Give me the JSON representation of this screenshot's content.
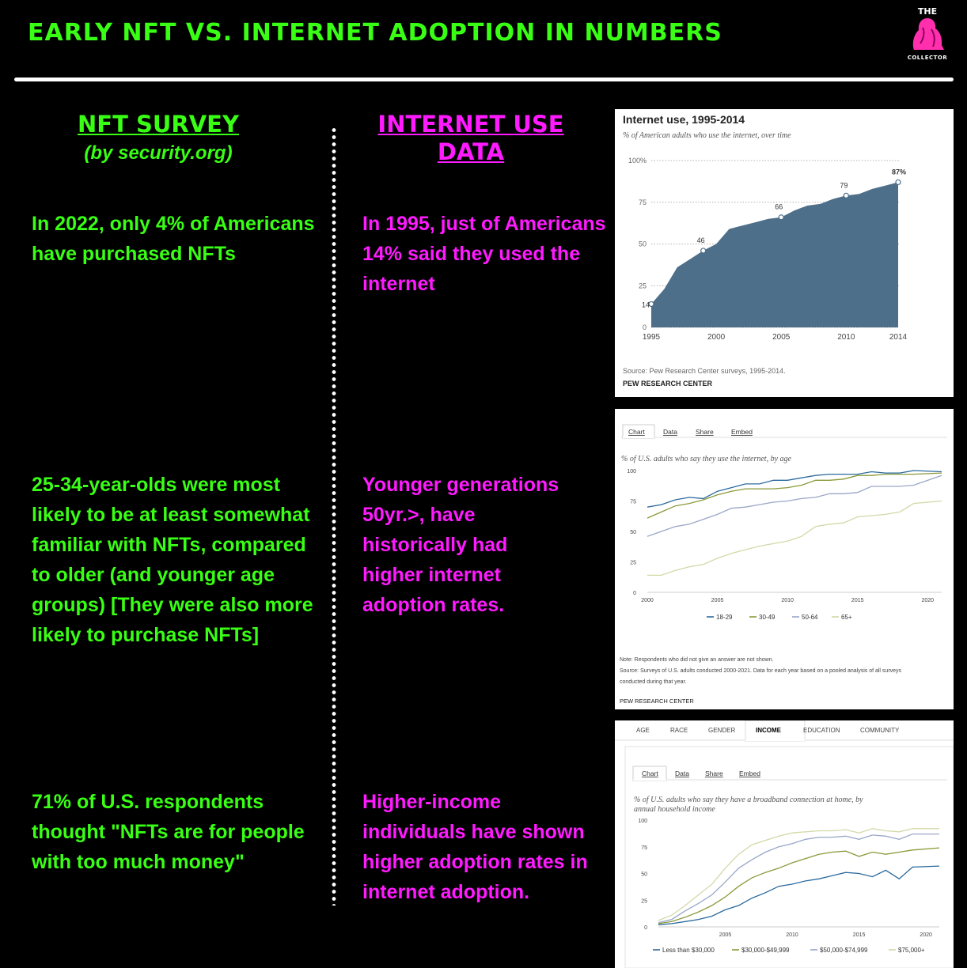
{
  "headline": "EARLY NFT VS. INTERNET ADOPTION IN NUMBERS",
  "logo": {
    "top": "THE",
    "bottom": "COLLECTOR"
  },
  "nft": {
    "heading": "NFT SURVEY ",
    "subheading": "(by security.org)",
    "p1": "In 2022, only 4% of Americans have purchased NFTs",
    "p2": "25-34-year-olds were most likely to be at least somewhat familiar with NFTs, compared to older (and younger age groups) [They were also more likely to purchase NFTs]",
    "p3": "71% of U.S. respondents thought \"NFTs are for people with too much money\""
  },
  "internet": {
    "heading": "INTERNET USE DATA",
    "p1": "In 1995, just of Americans 14% said they used the internet",
    "p2": "Younger generations 50yr.>, have historically had higher internet adoption rates.",
    "p3": "Higher-income individuals have shown higher adoption rates in internet adoption."
  },
  "colors": {
    "green": "#39ff14",
    "pink": "#ff1aff"
  },
  "chart_data": [
    {
      "type": "area",
      "title": "Internet use, 1995-2014",
      "subtitle": "% of American adults who use the internet, over time",
      "x": [
        1995,
        1996,
        1997,
        1998,
        1999,
        2000,
        2001,
        2002,
        2003,
        2004,
        2005,
        2006,
        2007,
        2008,
        2009,
        2010,
        2011,
        2012,
        2013,
        2014
      ],
      "values": [
        14,
        23,
        36,
        41,
        46,
        50,
        59,
        61,
        63,
        65,
        66,
        70,
        73,
        74,
        77,
        79,
        80,
        83,
        85,
        87
      ],
      "labeled_points": [
        {
          "x": 1995,
          "label": "14"
        },
        {
          "x": 1999,
          "label": "46"
        },
        {
          "x": 2005,
          "label": "66"
        },
        {
          "x": 2010,
          "label": "79"
        },
        {
          "x": 2014,
          "label": "87%"
        }
      ],
      "xticks": [
        "1995",
        "2000",
        "2005",
        "2010",
        "2014"
      ],
      "yticks": [
        "0",
        "25",
        "50",
        "75",
        "100%"
      ],
      "ylim": [
        0,
        100
      ],
      "source": "Source: Pew Research Center surveys, 1995-2014.",
      "credit": "PEW RESEARCH CENTER",
      "color": "#4e6f8a"
    },
    {
      "type": "line",
      "tabs": [
        "Chart",
        "Data",
        "Share",
        "Embed"
      ],
      "subtitle": "% of U.S. adults who say they use the internet, by age",
      "x": [
        2000,
        2001,
        2002,
        2003,
        2004,
        2005,
        2006,
        2007,
        2008,
        2009,
        2010,
        2011,
        2012,
        2013,
        2014,
        2015,
        2016,
        2017,
        2018,
        2019,
        2021
      ],
      "series": [
        {
          "name": "18-29",
          "color": "#2c6a9e",
          "values": [
            70,
            72,
            76,
            78,
            77,
            83,
            86,
            89,
            89,
            92,
            92,
            94,
            96,
            97,
            97,
            97,
            99,
            98,
            98,
            100,
            99
          ]
        },
        {
          "name": "30-49",
          "color": "#8a9a3a",
          "values": [
            61,
            66,
            71,
            73,
            76,
            80,
            83,
            85,
            85,
            85,
            86,
            88,
            92,
            92,
            93,
            96,
            96,
            97,
            97,
            97,
            98
          ]
        },
        {
          "name": "50-64",
          "color": "#9aa7c7",
          "values": [
            46,
            50,
            54,
            56,
            60,
            64,
            69,
            70,
            72,
            74,
            75,
            77,
            78,
            81,
            81,
            82,
            87,
            87,
            87,
            88,
            96
          ]
        },
        {
          "name": "65+",
          "color": "#d4d8a8",
          "values": [
            14,
            14,
            18,
            21,
            23,
            28,
            32,
            35,
            38,
            40,
            42,
            46,
            54,
            56,
            57,
            62,
            63,
            64,
            66,
            73,
            75
          ]
        }
      ],
      "xticks": [
        "2000",
        "2005",
        "2010",
        "2015",
        "2020"
      ],
      "yticks": [
        "0",
        "25",
        "50",
        "75",
        "100"
      ],
      "ylim": [
        0,
        100
      ],
      "legend": [
        "18-29",
        "30-49",
        "50-64",
        "65+"
      ],
      "note": "Note: Respondents who did not give an answer are not shown.",
      "source": "Source: Surveys of U.S. adults conducted 2000-2021. Data for each year based on a pooled analysis of all surveys conducted during that year.",
      "credit": "PEW RESEARCH CENTER"
    },
    {
      "type": "line",
      "top_tabs": [
        "AGE",
        "RACE",
        "GENDER",
        "INCOME",
        "EDUCATION",
        "COMMUNITY"
      ],
      "active_tab": "INCOME",
      "tabs": [
        "Chart",
        "Data",
        "Share",
        "Embed"
      ],
      "subtitle": "% of U.S. adults who say they have a broadband connection at home, by annual household income",
      "x": [
        2000,
        2001,
        2002,
        2003,
        2004,
        2005,
        2006,
        2007,
        2008,
        2009,
        2010,
        2011,
        2012,
        2013,
        2014,
        2015,
        2016,
        2017,
        2018,
        2019,
        2021
      ],
      "series": [
        {
          "name": "Less than $30,000",
          "color": "#2c6a9e",
          "values": [
            2,
            3,
            5,
            7,
            10,
            16,
            20,
            27,
            32,
            38,
            40,
            43,
            45,
            48,
            51,
            50,
            47,
            53,
            45,
            56,
            57
          ]
        },
        {
          "name": "$30,000-$49,999",
          "color": "#8a9a3a",
          "values": [
            3,
            5,
            9,
            14,
            20,
            28,
            38,
            46,
            51,
            55,
            60,
            64,
            68,
            70,
            71,
            66,
            70,
            68,
            70,
            72,
            74
          ]
        },
        {
          "name": "$50,000-$74,999",
          "color": "#9aa7c7",
          "values": [
            4,
            7,
            15,
            22,
            30,
            42,
            55,
            63,
            70,
            75,
            78,
            82,
            84,
            84,
            85,
            82,
            86,
            85,
            82,
            87,
            87
          ]
        },
        {
          "name": "$75,000+",
          "color": "#d4d8a8",
          "values": [
            6,
            11,
            20,
            30,
            40,
            55,
            68,
            77,
            81,
            85,
            88,
            89,
            90,
            90,
            91,
            88,
            92,
            90,
            89,
            92,
            92
          ]
        }
      ],
      "xticks": [
        "2005",
        "2010",
        "2015",
        "2020"
      ],
      "yticks": [
        "0",
        "25",
        "50",
        "75",
        "100"
      ],
      "ylim": [
        0,
        100
      ],
      "legend": [
        "Less than $30,000",
        "$30,000-$49,999",
        "$50,000-$74,999",
        "$75,000+"
      ]
    }
  ]
}
